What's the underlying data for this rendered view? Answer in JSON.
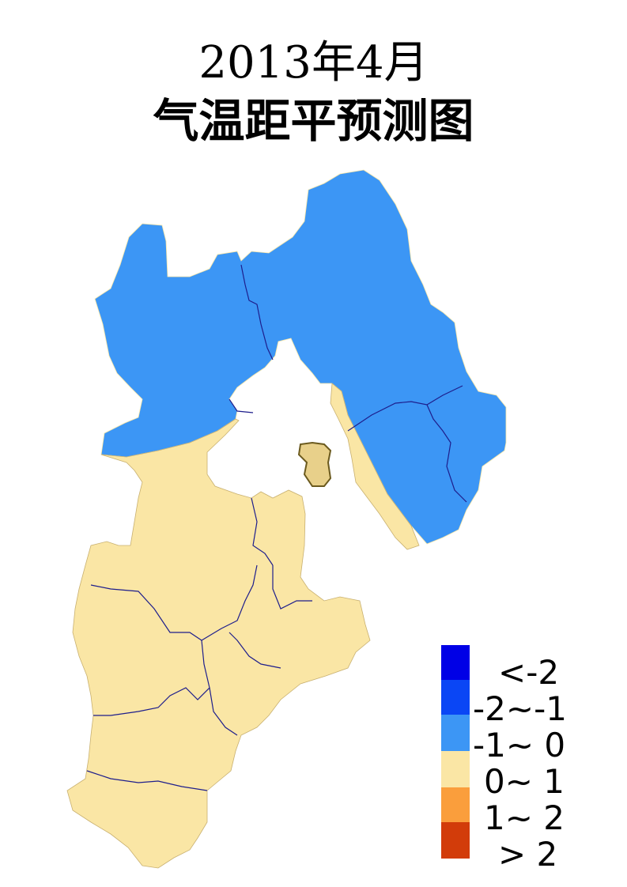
{
  "title": {
    "line1": "2013年4月",
    "line2": "气温距平预测图"
  },
  "legend": {
    "items": [
      {
        "label": "<-2",
        "color": "#0000e6"
      },
      {
        "label": "-2~-1",
        "color": "#0a46f5"
      },
      {
        "label": "-1~ 0",
        "color": "#3c96f5"
      },
      {
        "label": "0~ 1",
        "color": "#fae6a5"
      },
      {
        "label": "1~ 2",
        "color": "#fa9e3c"
      },
      {
        "label": "> 2",
        "color": "#d23c0a"
      }
    ]
  },
  "colors": {
    "boundary": "#1e1e8c",
    "beijing_tianjin": "#ffffff",
    "enclave": "#e8d08a"
  }
}
